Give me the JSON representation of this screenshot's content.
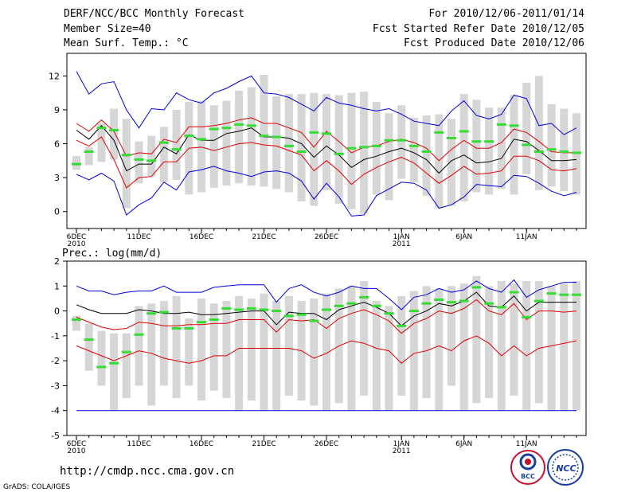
{
  "header": {
    "title": "DERF/NCC/BCC Monthly Forecast",
    "member_size": "Member Size=40",
    "variable": "Mean Surf. Temp.: °C",
    "forecast_period": "For 2010/12/06-2011/01/14",
    "started_date": "Fcst Started Refer Date 2010/12/05",
    "produced_date": "Fcst Produced Date 2010/12/06"
  },
  "footer": {
    "url": "http://cmdp.ncc.cma.gov.cn",
    "credit": "GrADS: COLA/IGES"
  },
  "logos": {
    "left": "BCC",
    "right": "NCC"
  },
  "colors": {
    "box": "#d6d6d6",
    "obs": "#33dd33",
    "mean": "#000000",
    "spread": "#dd0000",
    "extreme": "#0000dd"
  },
  "chart_data": [
    {
      "type": "line",
      "title": "Mean Surf. Temp.: °C",
      "ylim": [
        -1.5,
        14
      ],
      "yticks": [
        0,
        3,
        6,
        9,
        12
      ],
      "xlim": [
        0,
        40
      ],
      "xticks": [
        {
          "x": 0,
          "label": "6DEC",
          "label2": "2010"
        },
        {
          "x": 5,
          "label": "11DEC"
        },
        {
          "x": 10,
          "label": "16DEC"
        },
        {
          "x": 15,
          "label": "21DEC"
        },
        {
          "x": 20,
          "label": "26DEC"
        },
        {
          "x": 26,
          "label": "1JAN",
          "label2": "2011"
        },
        {
          "x": 31,
          "label": "6JAN"
        },
        {
          "x": 36,
          "label": "11JAN"
        }
      ],
      "box_low": [
        3.7,
        4.1,
        4.4,
        4.6,
        0.3,
        2.5,
        3.1,
        2.6,
        2.8,
        1.5,
        1.7,
        2.1,
        2.3,
        2.5,
        2.3,
        2.2,
        2.0,
        1.7,
        0.9,
        0.5,
        1.9,
        0.7,
        0.2,
        -0.2,
        1.5,
        1.0,
        2.9,
        2.6,
        1.4,
        0.3,
        0.5,
        0.9,
        1.7,
        1.5,
        2.0,
        1.5,
        3.3,
        1.9,
        2.2,
        1.8,
        1.5
      ],
      "box_high": [
        4.9,
        5.7,
        7.8,
        9.1,
        8.2,
        6.2,
        6.7,
        7.5,
        9.0,
        9.7,
        9.8,
        9.4,
        9.8,
        10.7,
        11.0,
        12.1,
        10.2,
        10.4,
        10.4,
        10.5,
        10.4,
        10.3,
        10.5,
        10.6,
        9.7,
        8.7,
        9.4,
        8.3,
        8.5,
        8.6,
        8.2,
        10.4,
        9.9,
        9.2,
        9.2,
        10.3,
        11.4,
        12.0,
        9.5,
        9.1,
        8.7
      ],
      "observed": [
        4.2,
        5.3,
        7.4,
        7.2,
        5.0,
        4.6,
        4.5,
        6.1,
        5.5,
        6.7,
        6.4,
        7.3,
        7.4,
        7.7,
        7.6,
        6.7,
        6.6,
        5.8,
        5.3,
        7.0,
        6.9,
        5.1,
        5.6,
        5.7,
        5.8,
        6.3,
        6.3,
        5.8,
        5.3,
        7.0,
        6.5,
        7.1,
        6.2,
        6.2,
        7.7,
        7.6,
        5.9,
        5.3,
        5.5,
        5.3,
        5.2
      ],
      "mean": [
        7.2,
        6.4,
        7.6,
        6.3,
        3.6,
        4.2,
        4.2,
        5.7,
        5.1,
        6.8,
        6.3,
        6.3,
        6.9,
        7.1,
        7.4,
        6.6,
        6.6,
        6.5,
        6.0,
        4.8,
        5.8,
        5.0,
        3.9,
        4.6,
        4.9,
        5.3,
        5.6,
        5.2,
        4.6,
        3.4,
        4.5,
        5.0,
        4.3,
        4.4,
        4.7,
        6.4,
        6.2,
        5.4,
        4.5,
        4.5,
        4.6
      ],
      "upper": [
        7.8,
        7.1,
        8.1,
        7.1,
        4.9,
        5.2,
        5.1,
        6.4,
        6.1,
        7.5,
        7.5,
        7.6,
        7.8,
        8.1,
        8.3,
        7.8,
        7.8,
        7.4,
        7.0,
        5.7,
        7.1,
        6.2,
        5.2,
        5.7,
        5.8,
        6.2,
        6.4,
        6.1,
        5.6,
        4.5,
        5.5,
        6.3,
        5.6,
        5.6,
        6.1,
        7.3,
        7.0,
        6.2,
        5.3,
        5.2,
        5.2
      ],
      "lower": [
        6.3,
        5.8,
        6.6,
        4.6,
        2.1,
        3.0,
        3.1,
        4.4,
        4.4,
        5.6,
        5.7,
        5.4,
        5.7,
        6.0,
        6.1,
        5.9,
        5.8,
        5.4,
        5.0,
        3.6,
        4.5,
        3.6,
        2.4,
        3.3,
        3.9,
        4.4,
        4.8,
        4.3,
        3.4,
        2.5,
        3.2,
        4.0,
        3.3,
        3.4,
        3.6,
        4.9,
        4.9,
        4.5,
        3.7,
        3.6,
        3.8
      ],
      "max": [
        12.4,
        10.4,
        11.3,
        11.5,
        9.0,
        7.4,
        9.1,
        9.0,
        10.5,
        9.9,
        9.6,
        10.5,
        10.9,
        11.5,
        12.0,
        10.5,
        10.4,
        10.1,
        9.5,
        8.9,
        10.1,
        9.6,
        9.4,
        9.1,
        8.9,
        9.1,
        8.6,
        8.0,
        7.8,
        7.6,
        8.9,
        9.8,
        8.5,
        8.2,
        8.6,
        10.3,
        10.0,
        7.6,
        7.8,
        6.8,
        7.4
      ],
      "min": [
        3.3,
        2.8,
        3.4,
        2.7,
        -0.3,
        0.6,
        1.2,
        2.6,
        1.9,
        3.5,
        3.7,
        4.0,
        3.6,
        3.4,
        3.1,
        3.5,
        3.6,
        3.4,
        2.7,
        1.1,
        2.5,
        1.3,
        -0.4,
        -0.3,
        1.4,
        2.0,
        2.6,
        2.5,
        1.9,
        0.3,
        0.6,
        1.3,
        2.4,
        2.3,
        2.2,
        3.2,
        3.1,
        2.5,
        1.8,
        1.4,
        1.7
      ]
    },
    {
      "type": "line",
      "title": "Prec.: log(mm/d)",
      "ylim": [
        -5,
        2
      ],
      "yticks": [
        -5,
        -4,
        -3,
        -2,
        -1,
        0,
        1,
        2
      ],
      "xlim": [
        0,
        40
      ],
      "xticks": [
        {
          "x": 0,
          "label": "6DEC",
          "label2": "2010"
        },
        {
          "x": 5,
          "label": "11DEC"
        },
        {
          "x": 10,
          "label": "16DEC"
        },
        {
          "x": 15,
          "label": "21DEC"
        },
        {
          "x": 20,
          "label": "26DEC"
        },
        {
          "x": 26,
          "label": "1JAN",
          "label2": "2011"
        },
        {
          "x": 31,
          "label": "6JAN"
        },
        {
          "x": 36,
          "label": "11JAN"
        }
      ],
      "box_low": [
        -0.8,
        -2.4,
        -3.0,
        -4.0,
        -3.5,
        -3.0,
        -3.8,
        -3.0,
        -3.5,
        -3.0,
        -3.6,
        -3.2,
        -3.5,
        -4.0,
        -3.6,
        -4.0,
        -4.0,
        -3.4,
        -3.6,
        -3.8,
        -4.0,
        -3.7,
        -4.0,
        -3.4,
        -4.0,
        -4.0,
        -3.4,
        -4.0,
        -3.5,
        -4.0,
        -3.0,
        -4.0,
        -3.7,
        -3.5,
        -4.0,
        -3.4,
        -4.0,
        -3.7,
        -4.0,
        -4.0,
        -4.0
      ],
      "box_high": [
        -0.2,
        -0.5,
        -0.8,
        -0.9,
        -0.9,
        0.2,
        0.3,
        0.4,
        0.6,
        -0.3,
        0.5,
        0.3,
        0.4,
        0.6,
        0.5,
        0.7,
        0.4,
        0.6,
        0.4,
        0.5,
        0.7,
        0.9,
        1.0,
        1.2,
        0.4,
        0.2,
        0.6,
        0.8,
        1.0,
        0.9,
        1.0,
        1.1,
        1.4,
        1.0,
        1.2,
        1.1,
        1.2,
        1.2,
        1.0,
        1.1,
        1.2
      ],
      "observed": [
        -0.35,
        -1.15,
        -2.25,
        -2.1,
        -1.65,
        -0.95,
        -0.1,
        -0.05,
        -0.7,
        -0.7,
        -0.45,
        -0.35,
        0.1,
        0.05,
        0.1,
        0.05,
        0.0,
        -0.2,
        -0.15,
        -0.4,
        0.05,
        0.2,
        0.3,
        0.55,
        0.2,
        -0.1,
        -0.6,
        0.0,
        0.3,
        0.45,
        0.35,
        0.4,
        0.95,
        0.3,
        0.15,
        0.75,
        -0.25,
        0.4,
        0.7,
        0.65,
        0.65
      ],
      "mean": [
        0.25,
        0.05,
        -0.1,
        -0.1,
        -0.1,
        0.05,
        0.0,
        -0.1,
        -0.1,
        -0.05,
        -0.15,
        -0.15,
        -0.1,
        -0.05,
        0.0,
        0.0,
        -0.55,
        -0.05,
        -0.1,
        -0.1,
        -0.35,
        0.05,
        0.2,
        0.35,
        0.15,
        -0.1,
        -0.6,
        -0.2,
        0.0,
        0.3,
        0.2,
        0.4,
        0.75,
        0.2,
        0.15,
        0.6,
        0.0,
        0.35,
        0.35,
        0.35,
        0.35
      ],
      "upper": [
        -0.25,
        -0.45,
        -0.65,
        -0.75,
        -0.7,
        -0.45,
        -0.5,
        -0.6,
        -0.6,
        -0.55,
        -0.55,
        -0.5,
        -0.5,
        -0.35,
        -0.35,
        -0.35,
        -0.85,
        -0.35,
        -0.4,
        -0.35,
        -0.7,
        -0.3,
        -0.1,
        0.05,
        -0.15,
        -0.4,
        -0.9,
        -0.5,
        -0.3,
        0.0,
        -0.1,
        0.1,
        0.45,
        0.0,
        -0.15,
        0.3,
        -0.35,
        0.0,
        0.0,
        -0.05,
        0.0
      ],
      "lower": [
        -1.4,
        -1.6,
        -1.8,
        -2.0,
        -1.8,
        -1.6,
        -1.7,
        -1.9,
        -2.0,
        -2.1,
        -2.0,
        -1.8,
        -1.8,
        -1.5,
        -1.5,
        -1.5,
        -1.5,
        -1.5,
        -1.6,
        -1.9,
        -1.7,
        -1.4,
        -1.2,
        -1.3,
        -1.5,
        -1.6,
        -2.1,
        -1.7,
        -1.6,
        -1.4,
        -1.6,
        -1.2,
        -1.0,
        -1.3,
        -1.8,
        -1.4,
        -1.8,
        -1.5,
        -1.4,
        -1.3,
        -1.2
      ],
      "max": [
        1.0,
        0.8,
        0.8,
        0.65,
        0.75,
        0.8,
        0.8,
        1.0,
        0.75,
        0.75,
        0.75,
        0.95,
        1.0,
        1.05,
        1.05,
        1.05,
        0.35,
        0.9,
        1.05,
        0.75,
        0.6,
        0.75,
        1.0,
        0.9,
        0.9,
        0.5,
        0.05,
        0.55,
        0.65,
        0.9,
        0.75,
        0.85,
        1.2,
        0.9,
        0.75,
        1.25,
        0.55,
        0.85,
        1.0,
        1.15,
        1.15
      ],
      "min": [
        -4.0,
        -4.0,
        -4.0,
        -4.0,
        -4.0,
        -4.0,
        -4.0,
        -4.0,
        -4.0,
        -4.0,
        -4.0,
        -4.0,
        -4.0,
        -4.0,
        -4.0,
        -4.0,
        -4.0,
        -4.0,
        -4.0,
        -4.0,
        -4.0,
        -4.0,
        -4.0,
        -4.0,
        -4.0,
        -4.0,
        -4.0,
        -4.0,
        -4.0,
        -4.0,
        -4.0,
        -4.0,
        -4.0,
        -4.0,
        -4.0,
        -4.0,
        -4.0,
        -4.0,
        -4.0,
        -4.0,
        -4.0
      ]
    }
  ]
}
